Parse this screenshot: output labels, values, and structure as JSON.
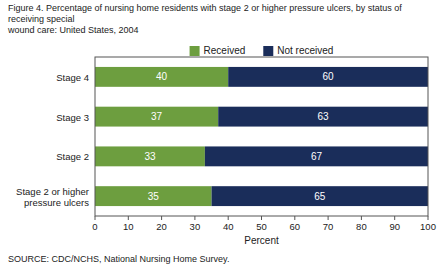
{
  "chart_data": {
    "type": "bar",
    "orientation": "horizontal",
    "stacked": true,
    "title": "Figure 4.  Percentage of nursing home residents with stage 2 or higher pressure ulcers, by status of receiving special\nwound care: United States, 2004",
    "categories": [
      "Stage 4",
      "Stage 3",
      "Stage 2",
      "Stage 2 or higher\npressure ulcers"
    ],
    "series": [
      {
        "name": "Received",
        "color": "#6d9e3f",
        "values": [
          40,
          37,
          33,
          35
        ]
      },
      {
        "name": "Not received",
        "color": "#1a2d5a",
        "values": [
          60,
          63,
          67,
          65
        ]
      }
    ],
    "xlabel": "Percent",
    "xlim": [
      0,
      100
    ],
    "xticks": [
      0,
      10,
      20,
      30,
      40,
      50,
      60,
      70,
      80,
      90,
      100
    ],
    "data_labels": true,
    "legend": "top",
    "grid": false,
    "source": "SOURCE:  CDC/NCHS, National Nursing Home Survey."
  }
}
